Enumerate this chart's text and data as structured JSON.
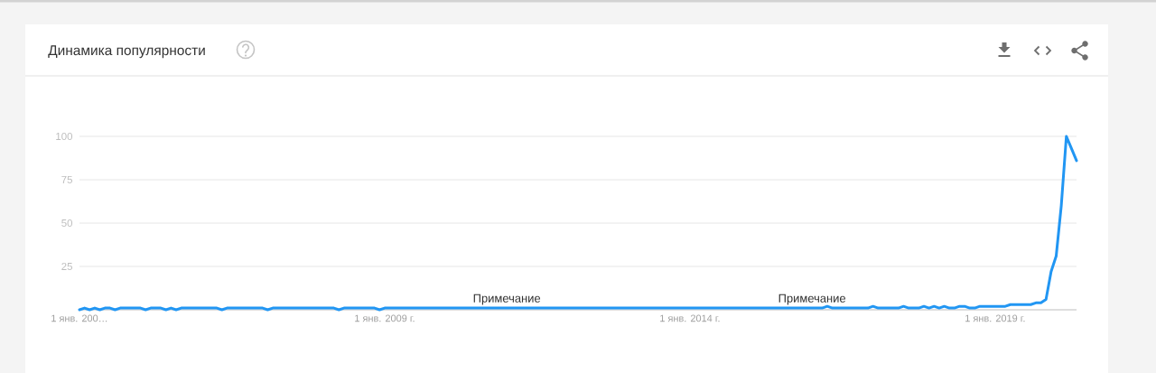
{
  "chart_data": {
    "type": "line",
    "title": "Динамика популярности",
    "x": [
      "2004-01",
      "2004-02",
      "2004-03",
      "2004-04",
      "2004-05",
      "2004-06",
      "2004-07",
      "2004-08",
      "2004-09",
      "2005-01",
      "2005-02",
      "2005-03",
      "2005-05",
      "2005-06",
      "2005-07",
      "2005-08",
      "2005-09",
      "2006-04",
      "2006-05",
      "2006-06",
      "2007-01",
      "2007-02",
      "2007-03",
      "2008-03",
      "2008-04",
      "2008-05",
      "2008-11",
      "2008-12",
      "2009-01",
      "2016-03",
      "2016-04",
      "2016-05",
      "2016-12",
      "2017-01",
      "2017-02",
      "2017-06",
      "2017-07",
      "2017-08",
      "2017-10",
      "2017-11",
      "2017-12",
      "2018-01",
      "2018-02",
      "2018-03",
      "2018-04",
      "2018-05",
      "2018-06",
      "2018-07",
      "2018-08",
      "2018-09",
      "2018-10",
      "2019-03",
      "2019-04",
      "2019-08",
      "2019-09",
      "2019-10",
      "2019-11",
      "2019-12",
      "2020-01",
      "2020-02",
      "2020-03",
      "2020-04",
      "2020-05"
    ],
    "values": [
      0,
      1,
      0,
      1,
      0,
      1,
      1,
      0,
      1,
      1,
      0,
      1,
      1,
      0,
      1,
      0,
      1,
      1,
      0,
      1,
      1,
      0,
      1,
      1,
      0,
      1,
      1,
      0,
      1,
      1,
      2,
      1,
      1,
      2,
      1,
      1,
      2,
      1,
      1,
      2,
      1,
      2,
      1,
      2,
      1,
      1,
      2,
      2,
      1,
      1,
      2,
      2,
      3,
      3,
      4,
      4,
      6,
      22,
      31,
      60,
      100,
      93,
      86
    ],
    "color": "#2196f3",
    "line_style": "solid",
    "xlim": [
      "2004-01",
      "2020-05"
    ],
    "xticks": [
      {
        "value": "2004-01",
        "label": "1 янв. 200…"
      },
      {
        "value": "2009-01",
        "label": "1 янв. 2009 г."
      },
      {
        "value": "2014-01",
        "label": "1 янв. 2014 г."
      },
      {
        "value": "2019-01",
        "label": "1 янв. 2019 г."
      }
    ],
    "ylim": [
      0,
      100
    ],
    "yticks": [
      25,
      50,
      75,
      100
    ],
    "grid": "y",
    "annotations": [
      {
        "text": "Примечание",
        "x": "2011-01",
        "y": 1
      },
      {
        "text": "Примечание",
        "x": "2016-01",
        "y": 1
      }
    ]
  }
}
